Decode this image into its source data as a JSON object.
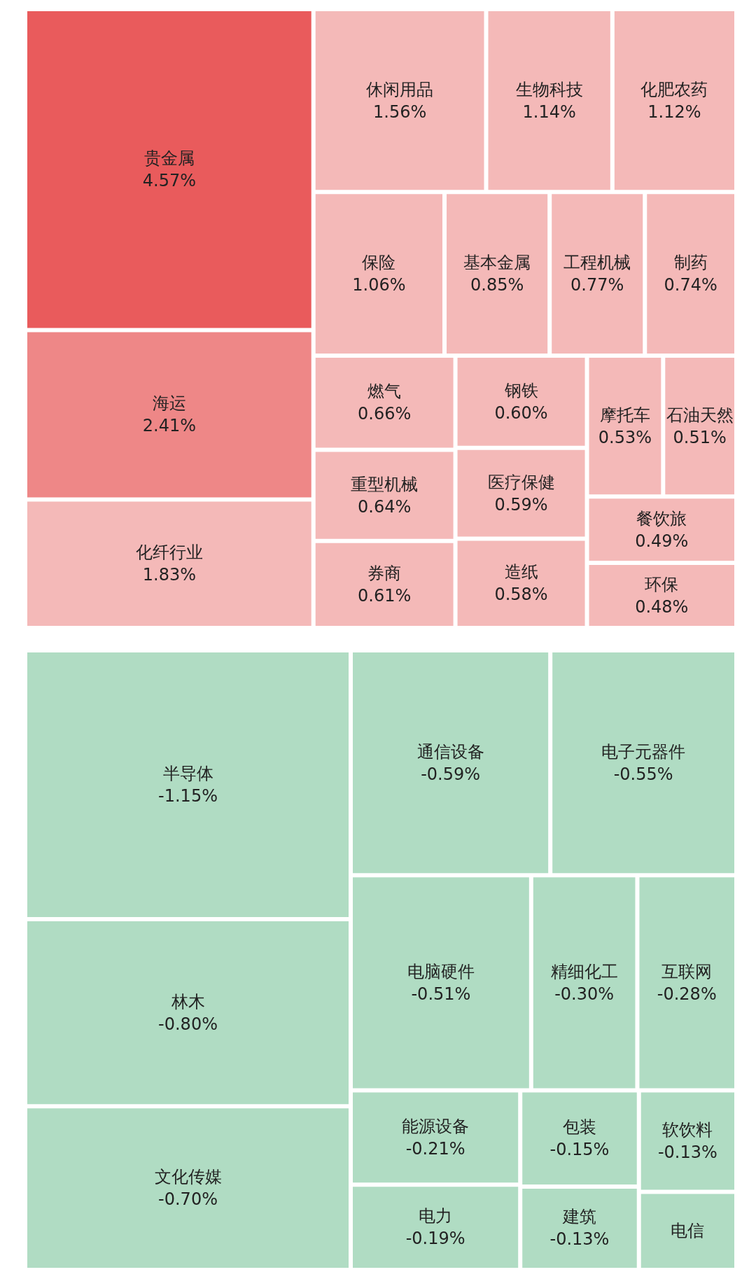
{
  "chart_data": [
    {
      "type": "other",
      "categories": [
        "贵金属",
        "海运",
        "化纤行业",
        "休闲用品",
        "生物科技",
        "化肥农药",
        "保险",
        "基本金属",
        "工程机械",
        "制药",
        "燃气",
        "重型机械",
        "医疗保健",
        "造纸",
        "券商",
        "摩托车",
        "餐饮旅",
        "钢铁",
        "石油天然",
        "环保"
      ],
      "values": [
        4.57,
        2.41,
        1.83,
        1.56,
        1.14,
        1.12,
        1.06,
        0.85,
        0.77,
        0.74,
        0.66,
        0.64,
        0.59,
        0.58,
        0.61,
        0.53,
        0.49,
        0.6,
        0.51,
        0.48
      ],
      "value_labels": [
        "4.57%",
        "2.41%",
        "1.83%",
        "1.56%",
        "1.14%",
        "1.12%",
        "1.06%",
        "0.85%",
        "0.77%",
        "0.74%",
        "0.66%",
        "0.64%",
        "0.59%",
        "0.58%",
        "0.61%",
        "0.53%",
        "0.49%",
        "0.60%",
        "0.51%",
        "0.48%"
      ],
      "colors": [
        "#e95b5c",
        "#ee8787",
        "#f4b9b8",
        "#f4b9b8",
        "#f4b9b8",
        "#f4b9b8",
        "#f4b9b8",
        "#f4b9b8",
        "#f4b9b8",
        "#f4b9b8",
        "#f4b9b8",
        "#f4b9b8",
        "#f4b9b8",
        "#f4b9b8",
        "#f4b9b8",
        "#f4b9b8",
        "#f4b9b8",
        "#f4b9b8",
        "#f4b9b8",
        "#f4b9b8"
      ]
    },
    {
      "type": "other",
      "categories": [
        "半导体",
        "林木",
        "文化传媒",
        "通信设备",
        "电子元器件",
        "电脑硬件",
        "精细化工",
        "互联网",
        "能源设备",
        "电力",
        "包装",
        "软饮料",
        "建筑",
        "电信"
      ],
      "values": [
        -1.15,
        -0.8,
        -0.7,
        -0.59,
        -0.55,
        -0.51,
        -0.3,
        -0.28,
        -0.21,
        -0.19,
        -0.15,
        -0.13,
        -0.13,
        null
      ],
      "value_labels": [
        "-1.15%",
        "-0.80%",
        "-0.70%",
        "-0.59%",
        "-0.55%",
        "-0.51%",
        "-0.30%",
        "-0.28%",
        "-0.21%",
        "-0.19%",
        "-0.15%",
        "-0.13%",
        "-0.13%",
        null
      ],
      "colors": [
        "#b0dcc3",
        "#b0dcc3",
        "#b0dcc3",
        "#b0dcc3",
        "#b0dcc3",
        "#b0dcc3",
        "#b0dcc3",
        "#b0dcc3",
        "#b0dcc3",
        "#b0dcc3",
        "#b0dcc3",
        "#b0dcc3",
        "#b0dcc3",
        "#b0dcc3"
      ]
    }
  ]
}
